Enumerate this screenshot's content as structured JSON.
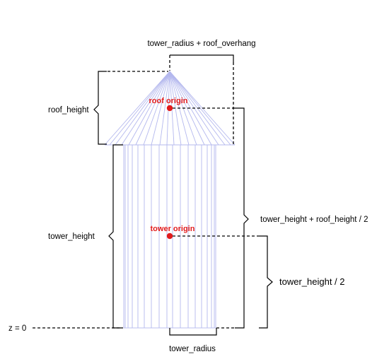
{
  "labels": {
    "roof_width": "tower_radius + roof_overhang",
    "roof_height": "roof_height",
    "tower_height": "tower_height",
    "roof_origin_offset": "tower_height + roof_height / 2",
    "tower_origin_offset": "tower_height / 2",
    "ground": "z = 0",
    "tower_radius": "tower_radius"
  },
  "origins": {
    "roof": "roof origin",
    "tower": "tower origin"
  },
  "colors": {
    "wireframe": "#b4b8ee",
    "origin": "#e21b1b",
    "lines": "#000000"
  }
}
